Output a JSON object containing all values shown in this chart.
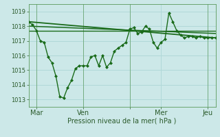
{
  "background_color": "#cce8e8",
  "grid_color": "#b0d8d8",
  "line_color": "#1a6b1a",
  "xlabel": "Pression niveau de la mer( hPa )",
  "ylim": [
    1012.5,
    1019.5
  ],
  "yticks": [
    1013,
    1014,
    1015,
    1016,
    1017,
    1018,
    1019
  ],
  "xlim": [
    0,
    288
  ],
  "x_tick_positions": [
    12,
    84,
    156,
    204,
    276
  ],
  "x_tick_labels": [
    "Mar",
    "Ven",
    "",
    "Mer",
    "Jeu"
  ],
  "x_vline_positions": [
    12,
    84,
    156,
    276
  ],
  "series_main": {
    "x": [
      0,
      6,
      12,
      18,
      24,
      30,
      36,
      42,
      48,
      54,
      60,
      66,
      72,
      78,
      84,
      90,
      96,
      102,
      108,
      114,
      120,
      126,
      132,
      138,
      144,
      150,
      156,
      162,
      168,
      174,
      180,
      186,
      192,
      198,
      204,
      210,
      216,
      222,
      228,
      234,
      240,
      246,
      252,
      258,
      264,
      270,
      276,
      282,
      288
    ],
    "y": [
      1018.3,
      1018.1,
      1017.7,
      1017.0,
      1016.9,
      1015.9,
      1015.5,
      1014.6,
      1013.2,
      1013.1,
      1013.8,
      1014.3,
      1015.1,
      1015.3,
      1015.3,
      1015.3,
      1015.9,
      1016.0,
      1015.3,
      1016.0,
      1015.2,
      1015.5,
      1016.3,
      1016.5,
      1016.7,
      1016.9,
      1017.8,
      1017.9,
      1017.5,
      1017.6,
      1018.0,
      1017.8,
      1016.9,
      1016.5,
      1016.9,
      1017.1,
      1018.9,
      1018.3,
      1017.7,
      1017.4,
      1017.2,
      1017.3,
      1017.3,
      1017.2,
      1017.3,
      1017.2,
      1017.2,
      1017.2,
      1017.2
    ],
    "marker": "D",
    "marker_size": 2.0,
    "linewidth": 1.0
  },
  "trend_lines": [
    {
      "x": [
        0,
        288
      ],
      "y": [
        1018.3,
        1017.2
      ],
      "linewidth": 1.3
    },
    {
      "x": [
        0,
        288
      ],
      "y": [
        1018.0,
        1017.5
      ],
      "linewidth": 1.1
    },
    {
      "x": [
        0,
        288
      ],
      "y": [
        1017.7,
        1017.7
      ],
      "linewidth": 1.0
    }
  ],
  "font_size_ticks": 6,
  "font_size_xlabel": 7
}
